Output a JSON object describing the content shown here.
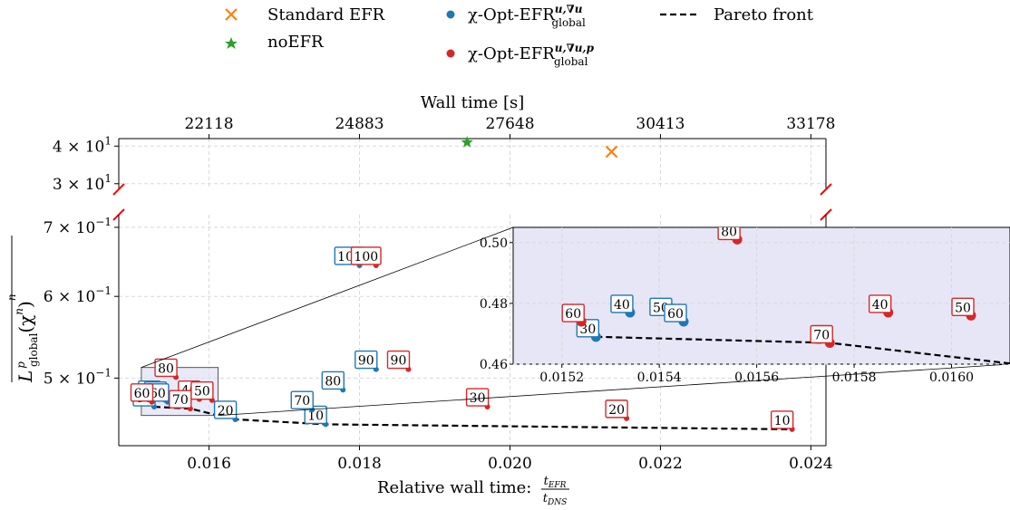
{
  "legend": {
    "items": [
      {
        "label": "Standard EFR",
        "marker": "x",
        "color": "#ff7f0e"
      },
      {
        "label": "noEFR",
        "marker": "star",
        "color": "#2ca02c"
      },
      {
        "label": "χ-Opt-EFR",
        "sup": "u,∇u",
        "sub": "global",
        "marker": "dot",
        "color": "#1f77b4"
      },
      {
        "label": "χ-Opt-EFR",
        "sup": "u,∇u,p",
        "sub": "global",
        "marker": "dot",
        "color": "#d62728"
      },
      {
        "label": "Pareto front",
        "marker": "dash",
        "color": "#000000"
      }
    ]
  },
  "chart_data": {
    "type": "scatter",
    "xlabel": "Relative wall time: ",
    "xlabel_frac_num": "t",
    "xlabel_frac_num_sub": "EFR",
    "xlabel_frac_den": "t",
    "xlabel_frac_den_sub": "DNS",
    "top_xlabel": "Wall time [s]",
    "ylabel": "L",
    "ylabel_sup": "p",
    "ylabel_sub": "global",
    "ylabel_arg": "(χ",
    "ylabel_arg_sup": "n",
    "ylabel_tail": ")",
    "ylabel_over_sup": "n",
    "xlim": [
      0.0148,
      0.0242
    ],
    "x_ticks": [
      "0.016",
      "0.018",
      "0.020",
      "0.022",
      "0.024"
    ],
    "x_tick_values": [
      0.016,
      0.018,
      0.02,
      0.022,
      0.024
    ],
    "top_ticks": [
      "22118",
      "24883",
      "27648",
      "30413",
      "33178"
    ],
    "top_tick_values": [
      0.016,
      0.018,
      0.02,
      0.022,
      0.024
    ],
    "lower_ylim": [
      0.43,
      0.72
    ],
    "lower_yscale": "log",
    "lower_y_ticks": [
      {
        "value": 0.5,
        "mant": "5 × 10",
        "exp": "−1"
      },
      {
        "value": 0.6,
        "mant": "6 × 10",
        "exp": "−1"
      },
      {
        "value": 0.7,
        "mant": "7 × 10",
        "exp": "−1"
      }
    ],
    "upper_ylim": [
      28.5,
      42
    ],
    "upper_y_ticks": [
      {
        "value": 30,
        "mant": "3 × 10",
        "exp": "1"
      },
      {
        "value": 40,
        "mant": "4 × 10",
        "exp": "1"
      }
    ],
    "standard_efr": {
      "x": 0.02135,
      "y": 38.5
    },
    "noefr": {
      "x": 0.01943,
      "y": 41.0
    },
    "series": [
      {
        "name": "χ-Opt-EFR u,∇u global",
        "color": "#1f77b4",
        "points": [
          {
            "label": "10",
            "x": 0.01755,
            "y": 0.451
          },
          {
            "label": "20",
            "x": 0.01635,
            "y": 0.456
          },
          {
            "label": "30",
            "x": 0.01527,
            "y": 0.469
          },
          {
            "label": "40",
            "x": 0.01534,
            "y": 0.477
          },
          {
            "label": "50",
            "x": 0.01542,
            "y": 0.476
          },
          {
            "label": "60",
            "x": 0.01545,
            "y": 0.474
          },
          {
            "label": "70",
            "x": 0.01737,
            "y": 0.466
          },
          {
            "label": "80",
            "x": 0.01778,
            "y": 0.487
          },
          {
            "label": "90",
            "x": 0.01822,
            "y": 0.51
          },
          {
            "label": "100",
            "x": 0.018,
            "y": 0.643
          }
        ]
      },
      {
        "name": "χ-Opt-EFR u,∇u,p global",
        "color": "#d62728",
        "points": [
          {
            "label": "10",
            "x": 0.02375,
            "y": 0.446
          },
          {
            "label": "20",
            "x": 0.02155,
            "y": 0.457
          },
          {
            "label": "30",
            "x": 0.0197,
            "y": 0.469
          },
          {
            "label": "40",
            "x": 0.01587,
            "y": 0.477
          },
          {
            "label": "50",
            "x": 0.01604,
            "y": 0.476
          },
          {
            "label": "60",
            "x": 0.01524,
            "y": 0.474
          },
          {
            "label": "70",
            "x": 0.01575,
            "y": 0.467
          },
          {
            "label": "80",
            "x": 0.01556,
            "y": 0.501
          },
          {
            "label": "90",
            "x": 0.01865,
            "y": 0.51
          },
          {
            "label": "100",
            "x": 0.01822,
            "y": 0.643
          }
        ]
      }
    ],
    "pareto_front": {
      "x": [
        0.01527,
        0.01575,
        0.01635,
        0.01755,
        0.02375
      ],
      "y": [
        0.469,
        0.467,
        0.456,
        0.451,
        0.446
      ]
    },
    "inset": {
      "xlim": [
        0.0151,
        0.01612
      ],
      "ylim": [
        0.46,
        0.505
      ],
      "x_ticks": [
        "0.0152",
        "0.0154",
        "0.0156",
        "0.0158",
        "0.0160"
      ],
      "x_tick_values": [
        0.0152,
        0.0154,
        0.0156,
        0.0158,
        0.016
      ],
      "y_ticks": [
        "0.46",
        "0.48",
        "0.50"
      ],
      "y_tick_values": [
        0.46,
        0.48,
        0.5
      ],
      "source_region": {
        "x": [
          0.0151,
          0.01612
        ],
        "y": [
          0.46,
          0.512
        ]
      }
    }
  }
}
